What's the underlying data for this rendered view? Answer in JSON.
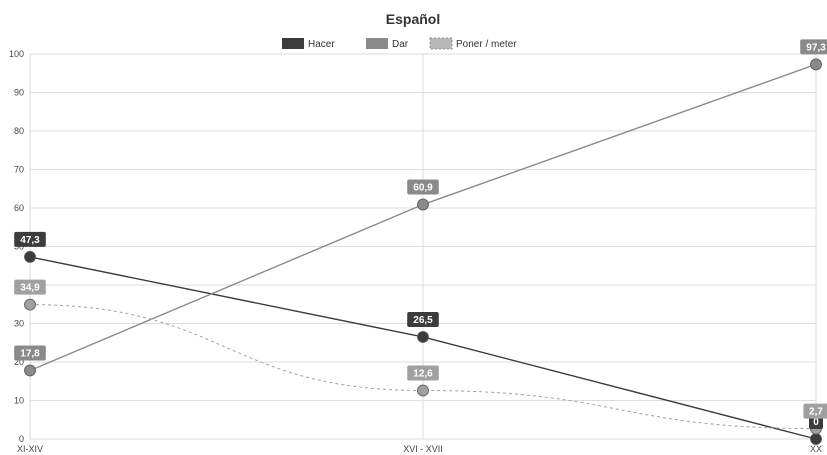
{
  "chart_data": {
    "type": "line",
    "title": "Español",
    "categories": [
      "XI-XIV",
      "XVI - XVII",
      "XX"
    ],
    "ylim": [
      0,
      100
    ],
    "yticks": [
      0,
      10,
      20,
      30,
      40,
      50,
      60,
      70,
      80,
      90,
      100
    ],
    "grid": true,
    "legend_position": "top-center",
    "series": [
      {
        "name": "Hacer",
        "values": [
          47.3,
          26.5,
          0
        ],
        "labels": [
          "47,3",
          "26,5",
          "0"
        ],
        "color": "#3c3c3c",
        "line_style": "solid"
      },
      {
        "name": "Dar",
        "values": [
          17.8,
          60.9,
          97.3
        ],
        "labels": [
          "17,8",
          "60,9",
          "97,3"
        ],
        "color": "#8a8a8a",
        "line_style": "solid"
      },
      {
        "name": "Poner / meter",
        "values": [
          34.9,
          12.6,
          2.7
        ],
        "labels": [
          "34,9",
          "12,6",
          "2,7"
        ],
        "color": "#a0a0a0",
        "line_style": "dashed"
      }
    ]
  }
}
